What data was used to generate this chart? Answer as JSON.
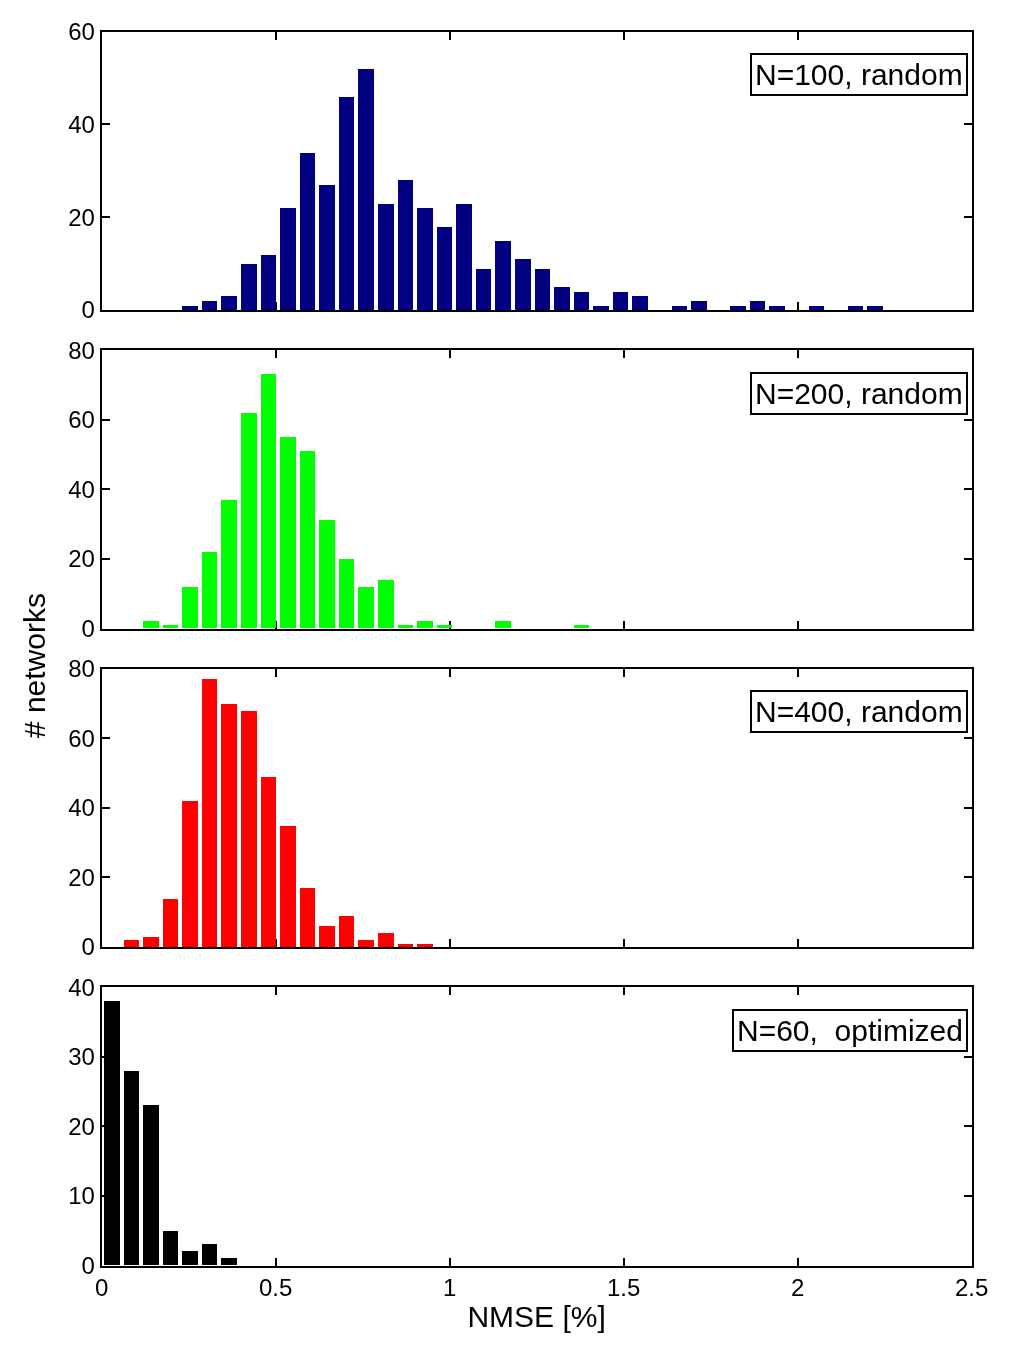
{
  "chart_data": [
    {
      "type": "histogram",
      "bins": [
        0.225,
        0.28125,
        0.3375,
        0.39375,
        0.45,
        0.50625,
        0.5625,
        0.61875,
        0.675,
        0.73125,
        0.7875,
        0.84375,
        0.9,
        0.95625,
        1.0125,
        1.06875,
        1.125,
        1.18125,
        1.2375,
        1.29375,
        1.35,
        1.40625,
        1.4625,
        1.51875,
        1.575,
        1.63125,
        1.6875,
        1.74375,
        1.8,
        1.85625,
        1.9125,
        1.96875,
        2.025,
        2.08125,
        2.1375,
        2.19375,
        2.25
      ],
      "values": [
        1,
        2,
        3,
        10,
        12,
        22,
        34,
        27,
        46,
        52,
        23,
        28,
        22,
        18,
        23,
        9,
        15,
        11,
        9,
        5,
        4,
        1,
        4,
        3,
        0,
        1,
        2,
        0,
        1,
        2,
        1,
        0,
        1,
        0,
        1,
        1
      ],
      "color": "#000080",
      "xlim": [
        0,
        2.5
      ],
      "xticks": [
        0,
        0.5,
        1,
        1.5,
        2,
        2.5
      ],
      "ylim": [
        0,
        60
      ],
      "yticks": [
        0,
        20,
        40,
        60
      ],
      "tick_labels": "y",
      "annotations": [
        "N=100, random"
      ]
    },
    {
      "type": "histogram",
      "bins": [
        0.1125,
        0.16875,
        0.225,
        0.28125,
        0.3375,
        0.39375,
        0.45,
        0.50625,
        0.5625,
        0.61875,
        0.675,
        0.73125,
        0.7875,
        0.84375,
        0.9,
        0.95625,
        1.0125,
        1.06875,
        1.125,
        1.18125,
        1.2375,
        1.29375,
        1.35,
        1.40625
      ],
      "values": [
        2,
        1,
        12,
        22,
        37,
        62,
        73,
        55,
        51,
        31,
        20,
        12,
        14,
        1,
        2,
        1,
        0,
        0,
        2,
        0,
        0,
        0,
        1
      ],
      "color": "#00ff00",
      "xlim": [
        0,
        2.5
      ],
      "xticks": [
        0,
        0.5,
        1,
        1.5,
        2,
        2.5
      ],
      "ylim": [
        0,
        80
      ],
      "yticks": [
        0,
        20,
        40,
        60,
        80
      ],
      "tick_labels": "y",
      "ylabel": "# networks",
      "annotations": [
        "N=200, random"
      ]
    },
    {
      "type": "histogram",
      "bins": [
        0.05625,
        0.1125,
        0.16875,
        0.225,
        0.28125,
        0.3375,
        0.39375,
        0.45,
        0.50625,
        0.5625,
        0.61875,
        0.675,
        0.73125,
        0.7875,
        0.84375,
        0.9,
        0.95625
      ],
      "values": [
        2,
        3,
        14,
        42,
        77,
        70,
        68,
        49,
        35,
        17,
        6,
        9,
        2,
        4,
        1,
        1
      ],
      "color": "#ff0000",
      "xlim": [
        0,
        2.5
      ],
      "xticks": [
        0,
        0.5,
        1,
        1.5,
        2,
        2.5
      ],
      "ylim": [
        0,
        80
      ],
      "yticks": [
        0,
        20,
        40,
        60,
        80
      ],
      "tick_labels": "y",
      "annotations": [
        "N=400, random"
      ]
    },
    {
      "type": "histogram",
      "bins": [
        0,
        0.05625,
        0.1125,
        0.16875,
        0.225,
        0.28125,
        0.3375,
        0.39375
      ],
      "values": [
        38,
        28,
        23,
        5,
        2,
        3,
        1
      ],
      "color": "#000000",
      "xlim": [
        0,
        2.5
      ],
      "xticks": [
        0,
        0.5,
        1,
        1.5,
        2,
        2.5
      ],
      "ylim": [
        0,
        40
      ],
      "yticks": [
        0,
        10,
        20,
        30,
        40
      ],
      "xlabel": "NMSE [%]",
      "annotations": [
        "N=60,  optimized"
      ]
    }
  ]
}
